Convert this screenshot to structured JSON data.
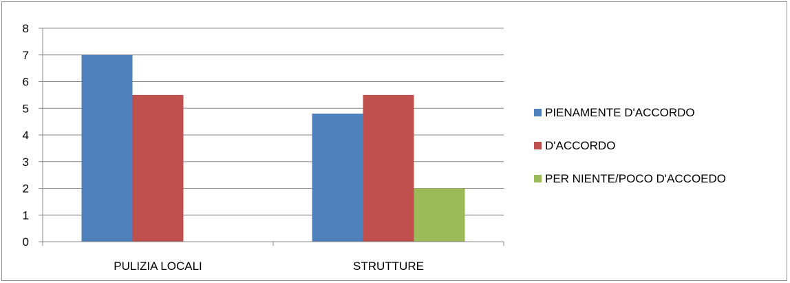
{
  "chart_data": {
    "type": "bar",
    "categories": [
      "PULIZIA LOCALI",
      "STRUTTURE"
    ],
    "series": [
      {
        "name": "PIENAMENTE D'ACCORDO",
        "values": [
          7,
          4.8
        ],
        "color": "#4f81bd"
      },
      {
        "name": "D'ACCORDO",
        "values": [
          5.5,
          5.5
        ],
        "color": "#c0504d"
      },
      {
        "name": "PER NIENTE/POCO D'ACCOEDO",
        "values": [
          0,
          2
        ],
        "color": "#9bbb59"
      }
    ],
    "ylim": [
      0,
      8
    ],
    "yticks": [
      "0",
      "1",
      "2",
      "3",
      "4",
      "5",
      "6",
      "7",
      "8"
    ],
    "grid": true,
    "legend_position": "right"
  }
}
